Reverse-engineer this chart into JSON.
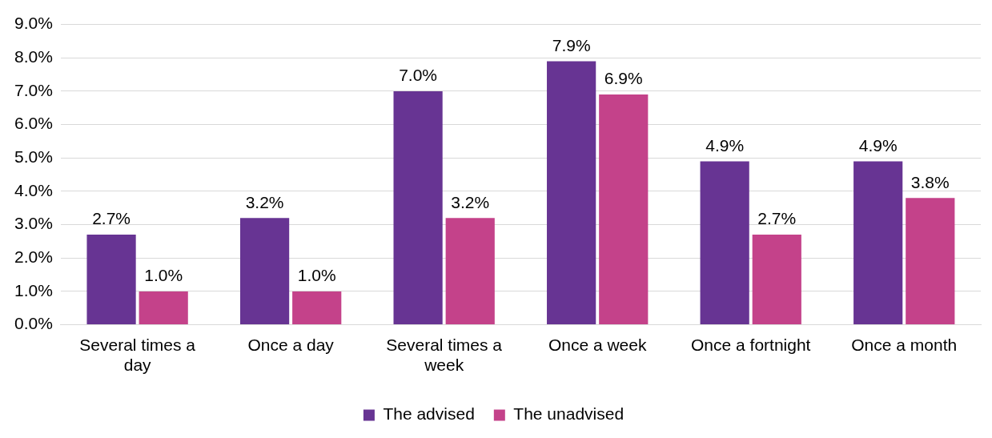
{
  "chart_data": {
    "type": "bar",
    "categories": [
      "Several times a day",
      "Once a day",
      "Several times a week",
      "Once a week",
      "Once a fortnight",
      "Once a month"
    ],
    "series": [
      {
        "name": "The advised",
        "color": "#673493",
        "values": [
          2.7,
          3.2,
          7.0,
          7.9,
          4.9,
          4.9
        ],
        "value_labels": [
          "2.7%",
          "3.2%",
          "7.0%",
          "7.9%",
          "4.9%",
          "4.9%"
        ]
      },
      {
        "name": "The unadvised",
        "color": "#c4428a",
        "values": [
          1.0,
          1.0,
          3.2,
          6.9,
          2.7,
          3.8
        ],
        "value_labels": [
          "1.0%",
          "1.0%",
          "3.2%",
          "6.9%",
          "2.7%",
          "3.8%"
        ]
      }
    ],
    "ylim": [
      0,
      9
    ],
    "yticks": [
      {
        "value": 0,
        "label": "0.0%"
      },
      {
        "value": 1,
        "label": "1.0%"
      },
      {
        "value": 2,
        "label": "2.0%"
      },
      {
        "value": 3,
        "label": "3.0%"
      },
      {
        "value": 4,
        "label": "4.0%"
      },
      {
        "value": 5,
        "label": "5.0%"
      },
      {
        "value": 6,
        "label": "6.0%"
      },
      {
        "value": 7,
        "label": "7.0%"
      },
      {
        "value": 8,
        "label": "8.0%"
      },
      {
        "value": 9,
        "label": "9.0%"
      }
    ],
    "grid": "y",
    "legend": "bottom"
  }
}
